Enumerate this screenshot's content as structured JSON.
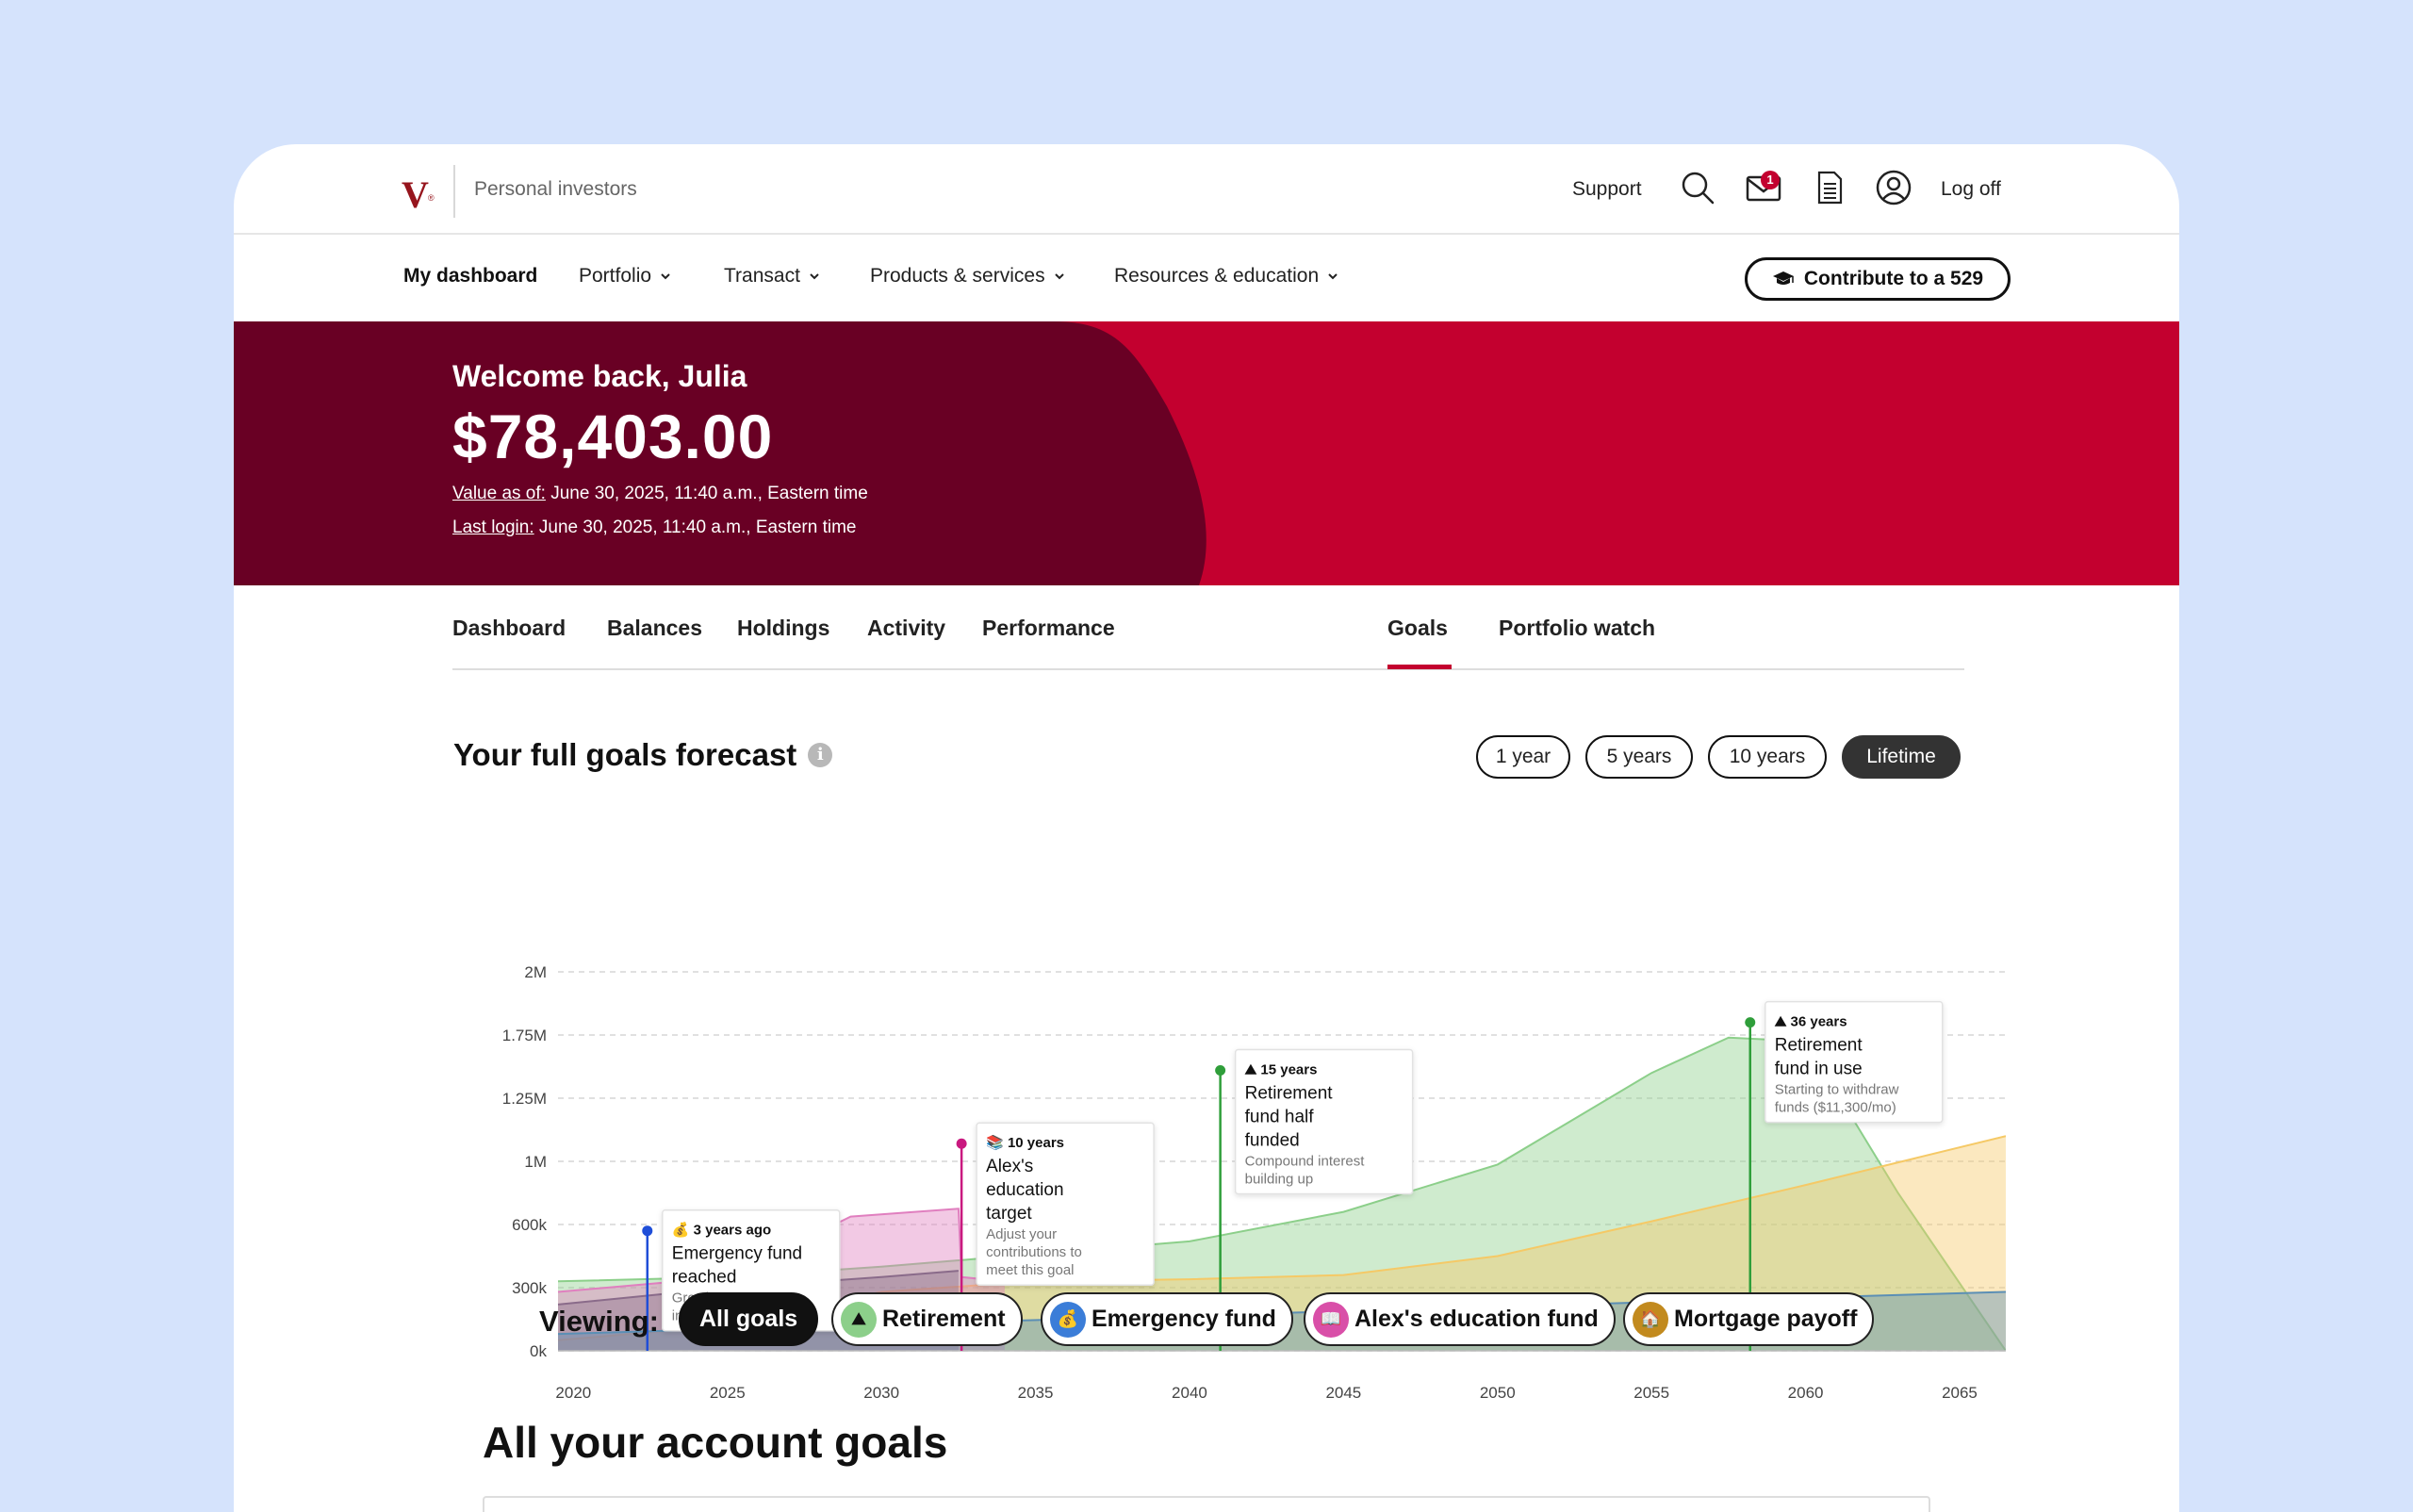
{
  "header": {
    "brand_logo": "V",
    "brand_tagline": "Personal investors",
    "support": "Support",
    "mail_badge": "1",
    "logoff": "Log off",
    "icons": [
      "search-icon",
      "mail-icon",
      "document-icon",
      "user-icon"
    ]
  },
  "nav": {
    "items": [
      {
        "label": "My dashboard",
        "dropdown": false
      },
      {
        "label": "Portfolio",
        "dropdown": true
      },
      {
        "label": "Transact",
        "dropdown": true
      },
      {
        "label": "Products & services",
        "dropdown": true
      },
      {
        "label": "Resources & education",
        "dropdown": true
      }
    ],
    "cta": "Contribute to a 529"
  },
  "hero": {
    "welcome": "Welcome back, Julia",
    "total": "$78,403.00",
    "value_as_of_label": "Value as of:",
    "value_as_of": "June 30, 2025, 11:40 a.m., Eastern time",
    "last_login_label": "Last login:",
    "last_login": "June 30, 2025, 11:40 a.m., Eastern time"
  },
  "tabs": {
    "items": [
      "Dashboard",
      "Balances",
      "Holdings",
      "Activity",
      "Performance",
      "Goals",
      "Portfolio watch"
    ],
    "active": "Goals"
  },
  "forecast": {
    "title": "Your full goals forecast",
    "info_icon": "i",
    "ranges": [
      "1 year",
      "5 years",
      "10 years",
      "Lifetime"
    ],
    "selected_range": "Lifetime"
  },
  "chart_data": {
    "type": "area",
    "yticks": [
      "2M",
      "1.75M",
      "1.25M",
      "1M",
      "600k",
      "300k",
      "0k"
    ],
    "xticks": [
      "2020",
      "2025",
      "2030",
      "2035",
      "2040",
      "2045",
      "2050",
      "2055",
      "2060",
      "2065"
    ],
    "grid": true,
    "xlim": [
      2019.5,
      2066.5
    ],
    "series": [
      {
        "color": "#8ccf8a",
        "x": [
          2019.5,
          2025,
          2030,
          2035,
          2040,
          2045,
          2050,
          2055,
          2057.5,
          2060,
          2063,
          2066.5
        ],
        "y": [
          0.33,
          0.35,
          0.4,
          0.46,
          0.52,
          0.68,
          0.98,
          1.45,
          1.73,
          1.7,
          0.8,
          0
        ]
      },
      {
        "color": "#f5c966",
        "x": [
          2019.5,
          2025,
          2030,
          2035,
          2040,
          2045,
          2050,
          2055,
          2060,
          2066.5
        ],
        "y": [
          0.05,
          0.12,
          0.28,
          0.33,
          0.34,
          0.36,
          0.45,
          0.62,
          0.85,
          1.1
        ]
      },
      {
        "color": "#e07fbf",
        "x": [
          2019.5,
          2025,
          2029,
          2032.5,
          2032.6,
          2034
        ],
        "y": [
          0.28,
          0.35,
          0.65,
          0.7,
          0.35,
          0.33
        ]
      },
      {
        "color": "#8a6b8a",
        "x": [
          2019.5,
          2025,
          2030,
          2032.5
        ],
        "y": [
          0.22,
          0.3,
          0.35,
          0.38
        ]
      },
      {
        "color": "#5b8fb5",
        "x": [
          2019.5,
          2066.5
        ],
        "y": [
          0.08,
          0.28
        ]
      }
    ],
    "milestones": [
      {
        "year": 2022.4,
        "top": 0.57,
        "color": "#1f4ed8",
        "icon": "💰",
        "tag": "3 years ago",
        "title": "Emergency fund reached",
        "note": "Growing at 3.7% interest"
      },
      {
        "year": 2032.6,
        "top": 1.07,
        "color": "#c9197f",
        "icon": "📚",
        "tag": "10 years",
        "title": "Alex's education target",
        "note": "Adjust your contributions to meet this goal"
      },
      {
        "year": 2041.0,
        "top": 1.47,
        "color": "#2f9e3a",
        "icon": "⛰",
        "tag": "15 years",
        "title": "Retirement fund half funded",
        "note": "Compound interest building up"
      },
      {
        "year": 2058.2,
        "top": 1.8,
        "color": "#2f9e3a",
        "icon": "⛰",
        "tag": "36 years",
        "title": "Retirement fund in use",
        "note": "Starting to withdraw funds ($11,300/mo)"
      }
    ]
  },
  "viewing": {
    "label": "Viewing:",
    "filters": [
      {
        "label": "All goals",
        "selected": true
      },
      {
        "label": "Retirement",
        "icon": "mountain-icon",
        "bg": "#8ccf8a"
      },
      {
        "label": "Emergency fund",
        "icon": "money-bag-icon",
        "bg": "#3b7dd8"
      },
      {
        "label": "Alex's education fund",
        "icon": "book-icon",
        "bg": "#d94fa8"
      },
      {
        "label": "Mortgage payoff",
        "icon": "house-icon",
        "bg": "#c28a1e"
      }
    ]
  },
  "goals_section": {
    "title": "All your account goals"
  }
}
